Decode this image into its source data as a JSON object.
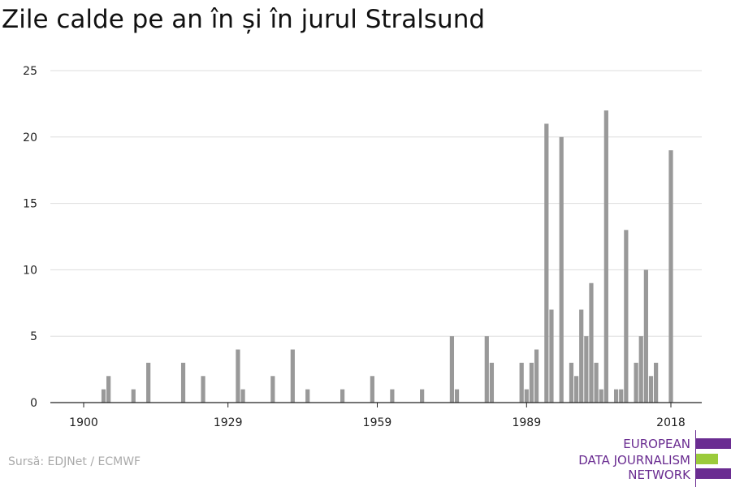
{
  "chart_data": {
    "type": "bar",
    "title": "Zile calde pe an în și în jurul Stralsund",
    "xlabel": "",
    "ylabel": "",
    "x_ticks": [
      1900,
      1929,
      1959,
      1989,
      2018
    ],
    "y_ticks": [
      0,
      5,
      10,
      15,
      20,
      25
    ],
    "ylim": [
      0,
      25
    ],
    "xlim": [
      1900,
      2018
    ],
    "grid": true,
    "color": "#999999",
    "x": [
      1904,
      1905,
      1910,
      1913,
      1920,
      1924,
      1931,
      1932,
      1938,
      1942,
      1945,
      1952,
      1958,
      1962,
      1968,
      1974,
      1975,
      1981,
      1982,
      1988,
      1989,
      1990,
      1991,
      1992,
      1993,
      1994,
      1995,
      1996,
      1997,
      1998,
      1999,
      2000,
      2001,
      2002,
      2003,
      2004,
      2005,
      2006,
      2007,
      2008,
      2009,
      2010,
      2011,
      2012,
      2013,
      2014,
      2015,
      2016,
      2018
    ],
    "values": [
      1,
      2,
      1,
      3,
      3,
      2,
      4,
      1,
      2,
      4,
      1,
      1,
      2,
      1,
      1,
      5,
      1,
      5,
      3,
      3,
      1,
      3,
      4,
      0,
      21,
      7,
      0,
      20,
      0,
      3,
      2,
      7,
      5,
      9,
      3,
      1,
      22,
      0,
      1,
      1,
      13,
      0,
      3,
      5,
      10,
      2,
      3,
      0,
      19
    ]
  },
  "footer": {
    "source": "Sursă: EDJNet / ECMWF"
  },
  "logo": {
    "line1": "EUROPEAN",
    "line2": "DATA JOURNALISM",
    "line3": "NETWORK",
    "color_primary": "#6a2c91",
    "color_accent": "#9bcb3b"
  }
}
